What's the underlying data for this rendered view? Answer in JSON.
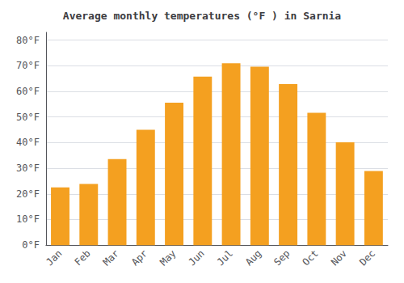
{
  "chart_data": {
    "type": "bar",
    "title": "Average monthly temperatures (°F ) in Sarnia",
    "categories": [
      "Jan",
      "Feb",
      "Mar",
      "Apr",
      "May",
      "Jun",
      "Jul",
      "Aug",
      "Sep",
      "Oct",
      "Nov",
      "Dec"
    ],
    "values": [
      22.5,
      23.9,
      33.6,
      45.0,
      55.6,
      65.7,
      70.9,
      69.6,
      62.8,
      51.6,
      40.1,
      28.9
    ],
    "color": "#F4A020",
    "ylim": [
      0,
      83
    ],
    "yticks": [
      {
        "value": 0,
        "label": "0°F"
      },
      {
        "value": 10,
        "label": "10°F"
      },
      {
        "value": 20,
        "label": "20°F"
      },
      {
        "value": 30,
        "label": "30°F"
      },
      {
        "value": 40,
        "label": "40°F"
      },
      {
        "value": 50,
        "label": "50°F"
      },
      {
        "value": 60,
        "label": "60°F"
      },
      {
        "value": 70,
        "label": "70°F"
      },
      {
        "value": 80,
        "label": "80°F"
      }
    ],
    "grid": true
  }
}
